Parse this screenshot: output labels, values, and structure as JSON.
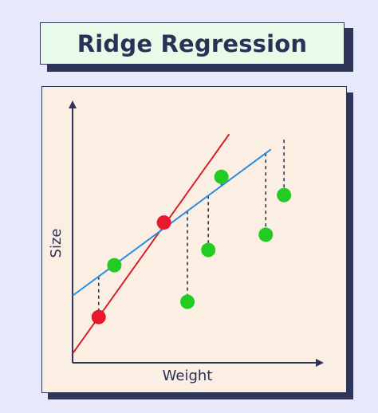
{
  "title": "Ridge Regression",
  "axes": {
    "xlabel": "Weight",
    "ylabel": "Size"
  },
  "colors": {
    "background": "#e8e8fb",
    "title_fill": "#e7fbe8",
    "panel_fill": "#fbefe3",
    "frame": "#2f3558",
    "training_point": "#e8192c",
    "test_point": "#22cc22",
    "red_line": "#d6202b",
    "blue_line": "#2a8de0",
    "residual": "#2b3156"
  },
  "chart_data": {
    "type": "scatter",
    "training_points": [
      {
        "x": 1.0,
        "y": 1.5
      },
      {
        "x": 3.5,
        "y": 4.6
      }
    ],
    "test_points": [
      {
        "x": 1.6,
        "y": 3.2
      },
      {
        "x": 4.4,
        "y": 2.0
      },
      {
        "x": 5.2,
        "y": 3.7
      },
      {
        "x": 5.7,
        "y": 6.1
      },
      {
        "x": 7.4,
        "y": 4.2
      },
      {
        "x": 8.1,
        "y": 5.5
      }
    ],
    "lines": [
      {
        "color": "red",
        "x1": 0,
        "y1": 0.3,
        "x2": 6.0,
        "y2": 7.5
      },
      {
        "color": "blue",
        "x1": 0,
        "y1": 2.2,
        "x2": 7.6,
        "y2": 7.0
      }
    ],
    "xlim": [
      0,
      9.5
    ],
    "ylim": [
      0,
      8.5
    ]
  }
}
